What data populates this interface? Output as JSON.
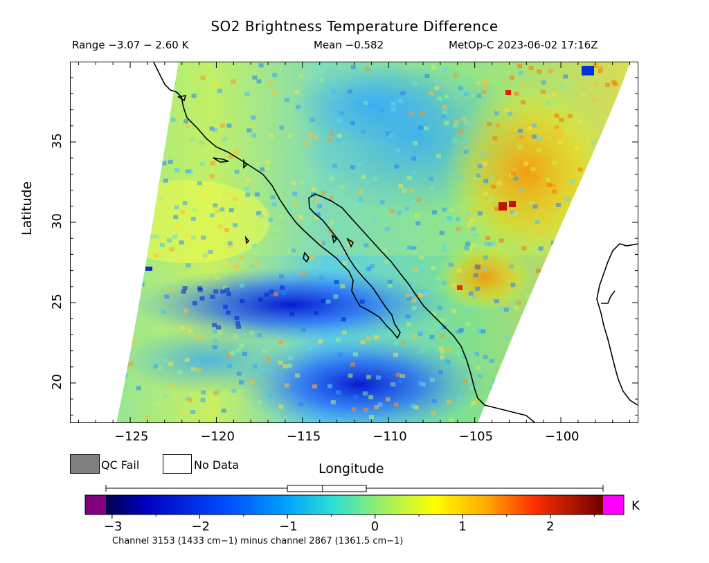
{
  "header": {
    "title": "SO2 Brightness Temperature Difference",
    "range": "Range −3.07 − 2.60 K",
    "mean": "Mean −0.582",
    "satellite_time": "MetOp-C 2023-06-02 17:16Z"
  },
  "axes": {
    "xlabel": "Longitude",
    "ylabel": "Latitude",
    "x_ticks": [
      "−125",
      "−120",
      "−115",
      "−110",
      "−105",
      "−100"
    ],
    "y_ticks": [
      "20",
      "25",
      "30",
      "35"
    ],
    "lon_range": [
      -128.5,
      -95.5
    ],
    "lat_range": [
      17.5,
      40
    ]
  },
  "legend": {
    "qc_fail": "QC Fail",
    "no_data": "No Data",
    "qc_fail_color": "#808080",
    "no_data_color": "#ffffff"
  },
  "colorbar": {
    "unit": "K",
    "ticks": [
      "−3",
      "−2",
      "−1",
      "0",
      "1",
      "2"
    ],
    "range": [
      -3.07,
      2.6
    ],
    "underflow_color": "#800080",
    "overflow_color": "#ff00ff",
    "box_plot": {
      "min": -3.07,
      "q1": -1.0,
      "median": -0.6,
      "q3": -0.1,
      "max": 2.6
    },
    "caption": "Channel 3153 (1433 cm−1) minus channel 2867 (1361.5 cm−1)"
  }
}
